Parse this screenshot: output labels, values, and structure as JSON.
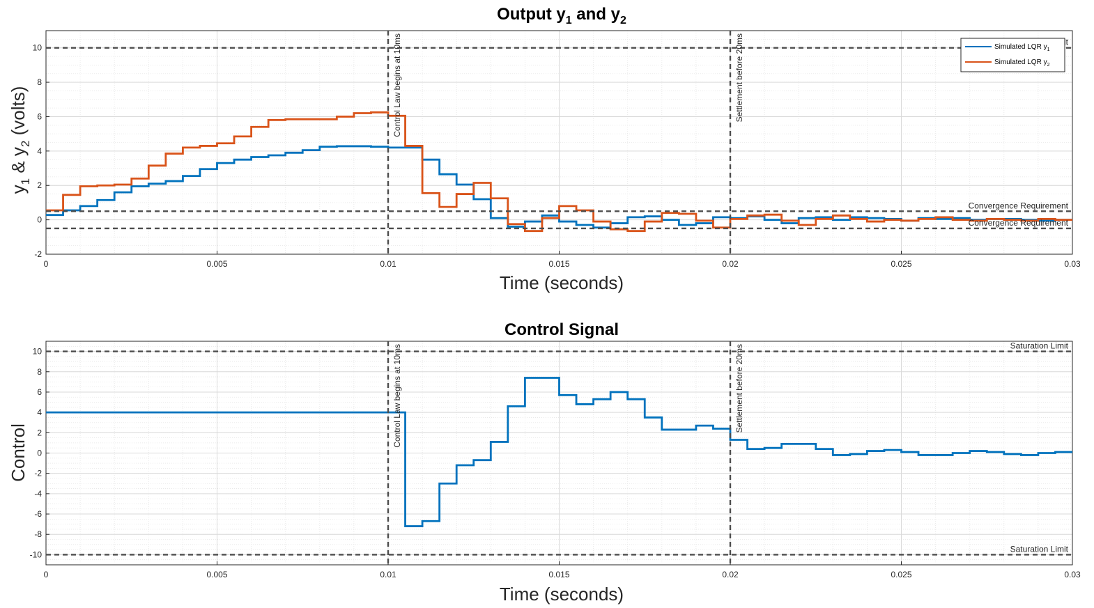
{
  "chart_data": [
    {
      "type": "line",
      "title": "Output y",
      "title_sub1": "1",
      "title_mid": " and y",
      "title_sub2": "2",
      "ylabel_parts": {
        "a": "y",
        "s1": "1",
        "b": " & y",
        "s2": "2",
        "c": " (volts)"
      },
      "xlabel": "Time (seconds)",
      "xlim": [
        0,
        0.03
      ],
      "ylim": [
        -2,
        11
      ],
      "xticks": [
        0,
        0.005,
        0.01,
        0.015,
        0.02,
        0.025,
        0.03
      ],
      "xtick_labels": [
        "0",
        "0.005",
        "0.01",
        "0.015",
        "0.02",
        "0.025",
        "0.03"
      ],
      "yticks": [
        -2,
        0,
        2,
        4,
        6,
        8,
        10
      ],
      "ytick_labels": [
        "-2",
        "0",
        "2",
        "4",
        "6",
        "8",
        "10"
      ],
      "grid": true,
      "minor_grid": true,
      "step": true,
      "dt": 0.0005,
      "legend_position": "top-right",
      "series": [
        {
          "name": "Simulated LQR y",
          "name_sub": "1",
          "color": "#0072BD",
          "values": [
            0.28,
            0.55,
            0.8,
            1.15,
            1.6,
            1.95,
            2.1,
            2.25,
            2.55,
            2.95,
            3.3,
            3.5,
            3.65,
            3.75,
            3.9,
            4.05,
            4.25,
            4.28,
            4.28,
            4.25,
            4.2,
            4.2,
            3.5,
            2.65,
            2.05,
            1.2,
            0.1,
            -0.4,
            -0.1,
            0.25,
            -0.1,
            -0.3,
            -0.45,
            -0.2,
            0.15,
            0.2,
            0.0,
            -0.3,
            -0.2,
            0.15,
            0.1,
            0.2,
            0.0,
            -0.2,
            0.1,
            0.15,
            0.0,
            0.15,
            0.1,
            0.05,
            -0.05,
            0.1,
            0.05,
            0.1,
            0.0,
            0.05,
            0.05,
            0.0,
            -0.05,
            0.0
          ]
        },
        {
          "name": "Simulated LQR y",
          "name_sub": "2",
          "color": "#D95319",
          "values": [
            0.55,
            1.45,
            1.95,
            2.0,
            2.05,
            2.4,
            3.15,
            3.85,
            4.2,
            4.3,
            4.45,
            4.85,
            5.4,
            5.8,
            5.85,
            5.85,
            5.85,
            6.0,
            6.2,
            6.25,
            6.05,
            4.3,
            1.55,
            0.75,
            1.5,
            2.15,
            1.25,
            -0.25,
            -0.65,
            0.1,
            0.8,
            0.55,
            -0.1,
            -0.55,
            -0.65,
            -0.1,
            0.4,
            0.35,
            -0.05,
            -0.45,
            0.05,
            0.25,
            0.3,
            -0.05,
            -0.3,
            0.05,
            0.25,
            0.05,
            -0.1,
            0.0,
            -0.05,
            0.05,
            0.15,
            0.0,
            -0.05,
            0.05,
            0.0,
            -0.05,
            0.05,
            0.0
          ]
        }
      ],
      "hlines": [
        {
          "y": 10,
          "label": "Saturation Limit"
        },
        {
          "y": 0.5,
          "label": "Convergence Requirement"
        },
        {
          "y": -0.5,
          "label": "Convergence Requirement"
        }
      ],
      "vlines": [
        {
          "x": 0.01,
          "label": "Control Law begins at 10ms"
        },
        {
          "x": 0.02,
          "label": "Settlement before 20ms"
        }
      ]
    },
    {
      "type": "line",
      "title": "Control Signal",
      "ylabel": "Control",
      "xlabel": "Time (seconds)",
      "xlim": [
        0,
        0.03
      ],
      "ylim": [
        -11,
        11
      ],
      "xticks": [
        0,
        0.005,
        0.01,
        0.015,
        0.02,
        0.025,
        0.03
      ],
      "xtick_labels": [
        "0",
        "0.005",
        "0.01",
        "0.015",
        "0.02",
        "0.025",
        "0.03"
      ],
      "yticks": [
        -10,
        -8,
        -6,
        -4,
        -2,
        0,
        2,
        4,
        6,
        8,
        10
      ],
      "ytick_labels": [
        "-10",
        "-8",
        "-6",
        "-4",
        "-2",
        "0",
        "2",
        "4",
        "6",
        "8",
        "10"
      ],
      "grid": true,
      "minor_grid": true,
      "step": true,
      "series": [
        {
          "color": "#0072BD",
          "x": [
            0,
            0.0105,
            0.011,
            0.0115,
            0.012,
            0.0125,
            0.013,
            0.0135,
            0.014,
            0.0145,
            0.015,
            0.0155,
            0.016,
            0.0165,
            0.017,
            0.0175,
            0.018,
            0.0185,
            0.019,
            0.0195,
            0.02,
            0.0205,
            0.021,
            0.0215,
            0.022,
            0.0225,
            0.023,
            0.0235,
            0.024,
            0.0245,
            0.025,
            0.0255,
            0.026,
            0.0265,
            0.027,
            0.0275,
            0.028,
            0.0285,
            0.029,
            0.0295,
            0.03
          ],
          "values": [
            4.0,
            -7.2,
            -6.7,
            -3.0,
            -1.2,
            -0.7,
            1.1,
            4.6,
            7.4,
            7.4,
            5.7,
            4.8,
            5.3,
            6.0,
            5.3,
            3.5,
            2.3,
            2.3,
            2.7,
            2.4,
            1.3,
            0.4,
            0.5,
            0.9,
            0.9,
            0.4,
            -0.2,
            -0.1,
            0.2,
            0.3,
            0.1,
            -0.2,
            -0.2,
            0.0,
            0.2,
            0.1,
            -0.1,
            -0.2,
            0.0,
            0.1,
            0.1
          ]
        }
      ],
      "hlines": [
        {
          "y": 10,
          "label": "Saturation Limit"
        },
        {
          "y": -10,
          "label": "Saturation Limit"
        }
      ],
      "vlines": [
        {
          "x": 0.01,
          "label": "Control Law begins at 10ms"
        },
        {
          "x": 0.02,
          "label": "Settlement before 20ms"
        }
      ]
    }
  ]
}
